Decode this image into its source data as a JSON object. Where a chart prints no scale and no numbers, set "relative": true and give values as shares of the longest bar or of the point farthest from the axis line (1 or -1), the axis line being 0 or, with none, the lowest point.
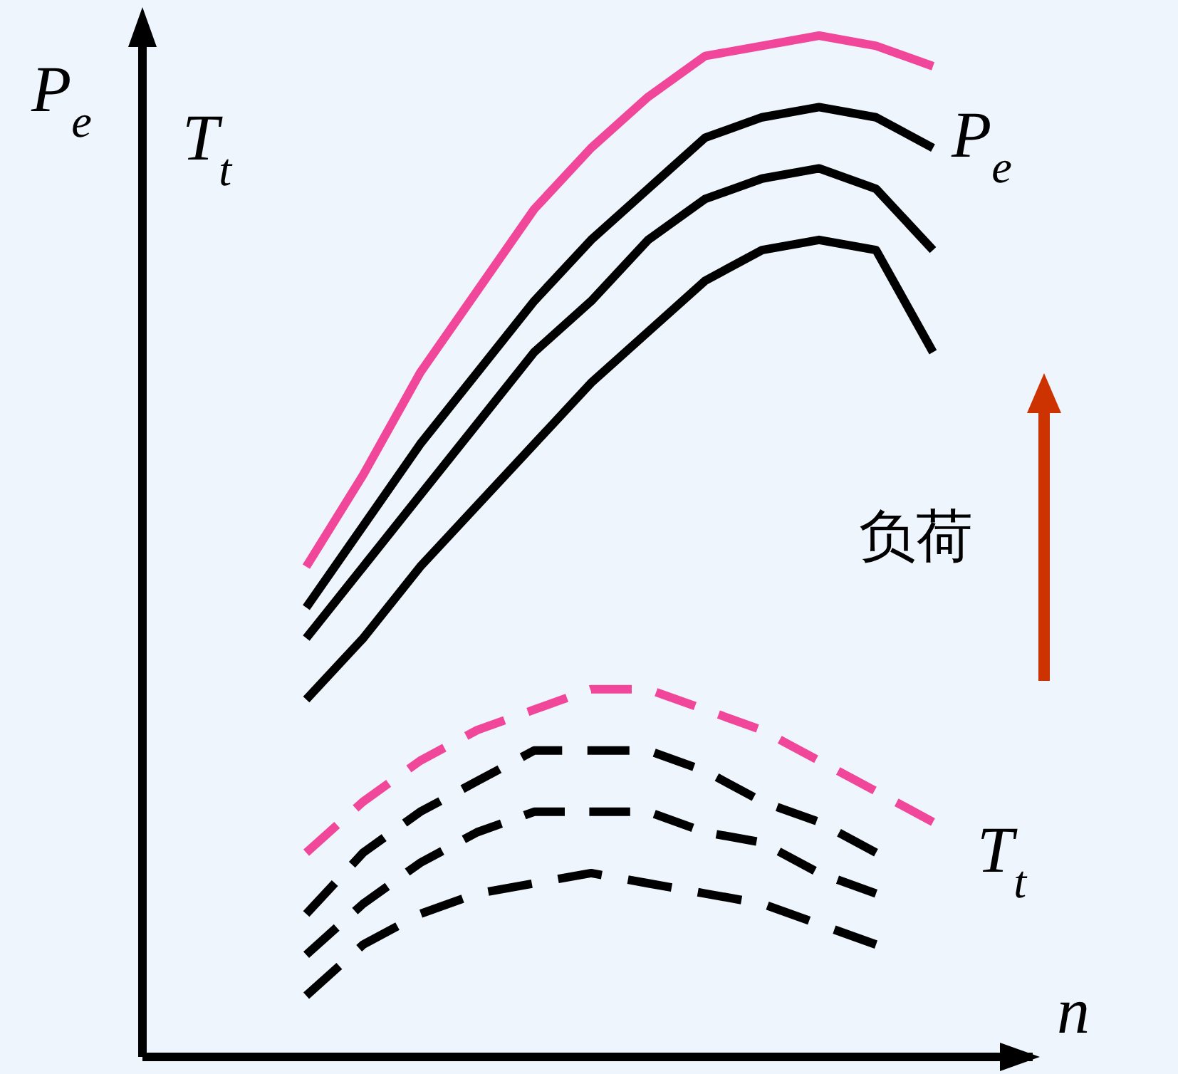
{
  "chart_data": {
    "type": "line",
    "relative": true,
    "xlabel": "n",
    "ylabel": "P$_{e}$",
    "annotations": [
      "T$_{t}$",
      "P$_{e}$",
      "T$_{t}$",
      "负荷"
    ],
    "categories": [
      null,
      null,
      null,
      null,
      null,
      null,
      null,
      null,
      null,
      null,
      null,
      null
    ],
    "series": [
      {
        "color": "#f0479a",
        "line_style": "solid",
        "values": [
          0.48,
          0.57,
          0.67,
          0.75,
          0.83,
          0.89,
          0.94,
          0.98,
          0.99,
          1.0,
          0.99,
          0.97
        ]
      },
      {
        "color": "#000000",
        "line_style": "solid",
        "values": [
          0.44,
          0.52,
          0.6,
          0.67,
          0.74,
          0.8,
          0.85,
          0.9,
          0.92,
          0.93,
          0.92,
          0.89
        ]
      },
      {
        "color": "#000000",
        "line_style": "solid",
        "values": [
          0.41,
          0.48,
          0.55,
          0.62,
          0.69,
          0.74,
          0.8,
          0.84,
          0.86,
          0.87,
          0.85,
          0.79
        ]
      },
      {
        "color": "#000000",
        "line_style": "solid",
        "values": [
          0.35,
          0.41,
          0.48,
          0.54,
          0.6,
          0.66,
          0.71,
          0.76,
          0.79,
          0.8,
          0.79,
          0.69
        ]
      },
      {
        "color": "#f0479a",
        "line_style": "dashed",
        "values": [
          0.2,
          0.25,
          0.29,
          0.32,
          0.34,
          0.36,
          0.36,
          0.34,
          0.32,
          0.29,
          0.26,
          0.23
        ]
      },
      {
        "color": "#000000",
        "line_style": "dashed",
        "values": [
          0.14,
          0.2,
          0.24,
          0.27,
          0.3,
          0.3,
          0.3,
          0.28,
          0.25,
          0.23,
          0.2,
          null
        ]
      },
      {
        "color": "#000000",
        "line_style": "dashed",
        "values": [
          0.1,
          0.15,
          0.19,
          0.22,
          0.24,
          0.24,
          0.24,
          0.22,
          0.21,
          0.18,
          0.16,
          null
        ]
      },
      {
        "color": "#000000",
        "line_style": "dashed",
        "values": [
          0.06,
          0.11,
          0.14,
          0.16,
          0.17,
          0.18,
          0.17,
          0.16,
          0.15,
          0.13,
          0.11,
          null
        ]
      }
    ]
  }
}
